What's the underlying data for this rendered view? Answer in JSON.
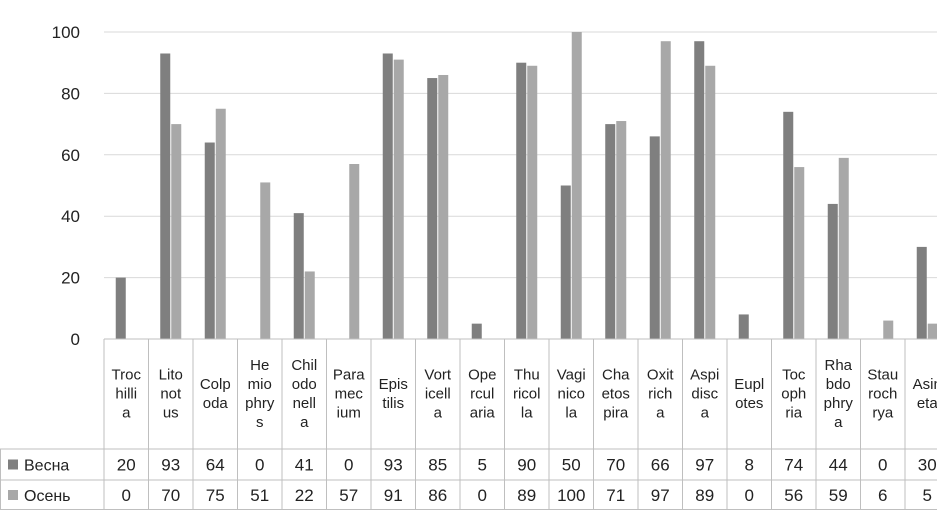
{
  "chart_data": {
    "type": "bar",
    "title": "",
    "xlabel": "",
    "ylabel": "",
    "ylim": [
      0,
      100
    ],
    "yticks": [
      0,
      20,
      40,
      60,
      80,
      100
    ],
    "grid": true,
    "legend": "data-table",
    "categories": [
      "Trochillia",
      "Litonotus",
      "Colpoda",
      "Hemiophrys",
      "Chilodonella",
      "Paramecium",
      "Epistilis",
      "Vorticella",
      "Opercularia",
      "Thuricola",
      "Vaginicola",
      "Chaetospira",
      "Oxitricha",
      "Aspidisca",
      "Euplotes",
      "Tocophria",
      "Rhabdophrya",
      "Staurochrya",
      "Asineta"
    ],
    "category_lines": [
      [
        "Troc",
        "hilli",
        "a"
      ],
      [
        "Lito",
        "not",
        "us"
      ],
      [
        "Colp",
        "oda"
      ],
      [
        "He",
        "mio",
        "phry",
        "s"
      ],
      [
        "Chil",
        "odo",
        "nell",
        "a"
      ],
      [
        "Para",
        "mec",
        "ium"
      ],
      [
        "Epis",
        "tilis"
      ],
      [
        "Vort",
        "icell",
        "a"
      ],
      [
        "Ope",
        "rcul",
        "aria"
      ],
      [
        "Thu",
        "ricol",
        "la"
      ],
      [
        "Vagi",
        "nico",
        "la"
      ],
      [
        "Cha",
        "etos",
        "pira"
      ],
      [
        "Oxit",
        "rich",
        "a"
      ],
      [
        "Aspi",
        "disc",
        "a"
      ],
      [
        "Eupl",
        "otes"
      ],
      [
        "Toc",
        "oph",
        "ria"
      ],
      [
        "Rha",
        "bdo",
        "phry",
        "a"
      ],
      [
        "Stau",
        "roch",
        "rya"
      ],
      [
        "Asin",
        "eta"
      ]
    ],
    "series": [
      {
        "name": "Весна",
        "color": "#7f7f7f",
        "values": [
          20,
          93,
          64,
          0,
          41,
          0,
          93,
          85,
          5,
          90,
          50,
          70,
          66,
          97,
          8,
          74,
          44,
          0,
          30
        ]
      },
      {
        "name": "Осень",
        "color": "#a8a8a8",
        "values": [
          0,
          70,
          75,
          51,
          22,
          57,
          91,
          86,
          0,
          89,
          100,
          71,
          97,
          89,
          0,
          56,
          59,
          6,
          5
        ]
      }
    ]
  }
}
